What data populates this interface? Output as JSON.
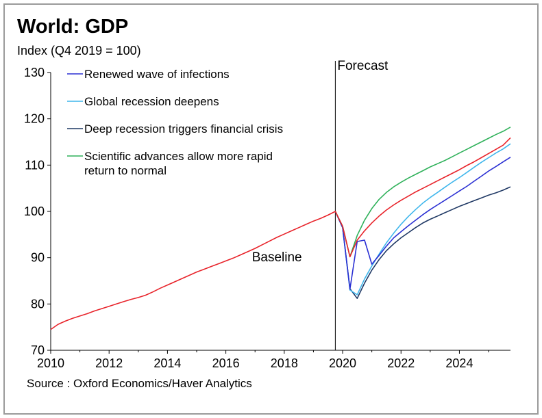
{
  "chart_data": {
    "type": "line",
    "title": "World: GDP",
    "ylabel": "Index (Q4 2019 = 100)",
    "xlabel": "",
    "xlim": [
      2010,
      2025.75
    ],
    "ylim": [
      70,
      130
    ],
    "x_ticks": [
      2010,
      2012,
      2014,
      2016,
      2018,
      2020,
      2022,
      2024
    ],
    "x_tick_labels": [
      "2010",
      "2012",
      "2014",
      "2016",
      "2018",
      "2020",
      "2022",
      "2024"
    ],
    "y_ticks": [
      70,
      80,
      90,
      100,
      110,
      120,
      130
    ],
    "y_tick_labels": [
      "70",
      "80",
      "90",
      "100",
      "110",
      "120",
      "130"
    ],
    "grid": false,
    "legend_position": "top-left of forecast area",
    "annotations": {
      "forecast_label": "Forecast",
      "forecast_x": 2019.75,
      "baseline_label": "Baseline"
    },
    "source": "Source : Oxford Economics/Haver Analytics",
    "series": [
      {
        "name": "Baseline",
        "color": "#e8232a",
        "points": [
          [
            2010.0,
            74.5
          ],
          [
            2010.25,
            75.6
          ],
          [
            2010.5,
            76.3
          ],
          [
            2010.75,
            76.9
          ],
          [
            2011.0,
            77.4
          ],
          [
            2011.25,
            77.9
          ],
          [
            2011.5,
            78.5
          ],
          [
            2011.75,
            79.0
          ],
          [
            2012.0,
            79.5
          ],
          [
            2012.25,
            80.0
          ],
          [
            2012.5,
            80.5
          ],
          [
            2012.75,
            81.0
          ],
          [
            2013.0,
            81.4
          ],
          [
            2013.25,
            81.9
          ],
          [
            2013.5,
            82.6
          ],
          [
            2013.75,
            83.4
          ],
          [
            2014.0,
            84.1
          ],
          [
            2014.25,
            84.8
          ],
          [
            2014.5,
            85.5
          ],
          [
            2014.75,
            86.2
          ],
          [
            2015.0,
            86.9
          ],
          [
            2015.25,
            87.5
          ],
          [
            2015.5,
            88.1
          ],
          [
            2015.75,
            88.7
          ],
          [
            2016.0,
            89.3
          ],
          [
            2016.25,
            89.9
          ],
          [
            2016.5,
            90.6
          ],
          [
            2016.75,
            91.3
          ],
          [
            2017.0,
            92.0
          ],
          [
            2017.25,
            92.8
          ],
          [
            2017.5,
            93.6
          ],
          [
            2017.75,
            94.4
          ],
          [
            2018.0,
            95.1
          ],
          [
            2018.25,
            95.8
          ],
          [
            2018.5,
            96.5
          ],
          [
            2018.75,
            97.2
          ],
          [
            2019.0,
            97.9
          ],
          [
            2019.25,
            98.5
          ],
          [
            2019.5,
            99.2
          ],
          [
            2019.75,
            100.0
          ],
          [
            2020.0,
            96.8
          ],
          [
            2020.25,
            90.2
          ],
          [
            2020.5,
            93.8
          ],
          [
            2020.75,
            95.8
          ],
          [
            2021.0,
            97.5
          ],
          [
            2021.25,
            99.0
          ],
          [
            2021.5,
            100.3
          ],
          [
            2021.75,
            101.4
          ],
          [
            2022.0,
            102.4
          ],
          [
            2022.25,
            103.3
          ],
          [
            2022.5,
            104.2
          ],
          [
            2022.75,
            105.0
          ],
          [
            2023.0,
            105.8
          ],
          [
            2023.25,
            106.6
          ],
          [
            2023.5,
            107.4
          ],
          [
            2023.75,
            108.2
          ],
          [
            2024.0,
            109.0
          ],
          [
            2024.25,
            109.9
          ],
          [
            2024.5,
            110.7
          ],
          [
            2024.75,
            111.6
          ],
          [
            2025.0,
            112.5
          ],
          [
            2025.25,
            113.4
          ],
          [
            2025.5,
            114.3
          ],
          [
            2025.75,
            115.9
          ]
        ]
      },
      {
        "name": "Renewed wave of infections",
        "color": "#2a2fd3",
        "points": [
          [
            2019.75,
            100.0
          ],
          [
            2020.0,
            96.5
          ],
          [
            2020.25,
            83.2
          ],
          [
            2020.5,
            93.5
          ],
          [
            2020.75,
            93.8
          ],
          [
            2021.0,
            88.6
          ],
          [
            2021.25,
            90.5
          ],
          [
            2021.5,
            92.5
          ],
          [
            2021.75,
            94.3
          ],
          [
            2022.0,
            95.6
          ],
          [
            2022.25,
            96.9
          ],
          [
            2022.5,
            98.1
          ],
          [
            2022.75,
            99.3
          ],
          [
            2023.0,
            100.4
          ],
          [
            2023.25,
            101.4
          ],
          [
            2023.5,
            102.4
          ],
          [
            2023.75,
            103.4
          ],
          [
            2024.0,
            104.4
          ],
          [
            2024.25,
            105.4
          ],
          [
            2024.5,
            106.5
          ],
          [
            2024.75,
            107.6
          ],
          [
            2025.0,
            108.7
          ],
          [
            2025.25,
            109.7
          ],
          [
            2025.5,
            110.7
          ],
          [
            2025.75,
            111.7
          ]
        ]
      },
      {
        "name": "Global recession deepens",
        "color": "#3fb6ec",
        "points": [
          [
            2019.75,
            100.0
          ],
          [
            2020.0,
            96.5
          ],
          [
            2020.25,
            83.0
          ],
          [
            2020.5,
            82.0
          ],
          [
            2020.75,
            85.4
          ],
          [
            2021.0,
            88.2
          ],
          [
            2021.25,
            90.8
          ],
          [
            2021.5,
            93.2
          ],
          [
            2021.75,
            95.3
          ],
          [
            2022.0,
            97.2
          ],
          [
            2022.25,
            98.9
          ],
          [
            2022.5,
            100.4
          ],
          [
            2022.75,
            101.8
          ],
          [
            2023.0,
            103.0
          ],
          [
            2023.25,
            104.1
          ],
          [
            2023.5,
            105.2
          ],
          [
            2023.75,
            106.3
          ],
          [
            2024.0,
            107.3
          ],
          [
            2024.25,
            108.4
          ],
          [
            2024.5,
            109.5
          ],
          [
            2024.75,
            110.6
          ],
          [
            2025.0,
            111.6
          ],
          [
            2025.25,
            112.6
          ],
          [
            2025.5,
            113.5
          ],
          [
            2025.75,
            114.6
          ]
        ]
      },
      {
        "name": "Deep recession triggers financial crisis",
        "color": "#1f3864",
        "points": [
          [
            2019.75,
            100.0
          ],
          [
            2020.0,
            96.5
          ],
          [
            2020.25,
            83.3
          ],
          [
            2020.5,
            81.2
          ],
          [
            2020.75,
            84.5
          ],
          [
            2021.0,
            87.3
          ],
          [
            2021.25,
            89.6
          ],
          [
            2021.5,
            91.5
          ],
          [
            2021.75,
            93.0
          ],
          [
            2022.0,
            94.3
          ],
          [
            2022.25,
            95.4
          ],
          [
            2022.5,
            96.5
          ],
          [
            2022.75,
            97.5
          ],
          [
            2023.0,
            98.3
          ],
          [
            2023.25,
            99.0
          ],
          [
            2023.5,
            99.7
          ],
          [
            2023.75,
            100.4
          ],
          [
            2024.0,
            101.1
          ],
          [
            2024.25,
            101.7
          ],
          [
            2024.5,
            102.3
          ],
          [
            2024.75,
            102.9
          ],
          [
            2025.0,
            103.5
          ],
          [
            2025.25,
            104.0
          ],
          [
            2025.5,
            104.6
          ],
          [
            2025.75,
            105.3
          ]
        ]
      },
      {
        "name": "Scientific advances allow more rapid return to normal",
        "color": "#2fb15a",
        "points": [
          [
            2019.75,
            100.0
          ],
          [
            2020.0,
            96.8
          ],
          [
            2020.25,
            90.2
          ],
          [
            2020.5,
            94.8
          ],
          [
            2020.75,
            98.1
          ],
          [
            2021.0,
            100.6
          ],
          [
            2021.25,
            102.6
          ],
          [
            2021.5,
            104.1
          ],
          [
            2021.75,
            105.3
          ],
          [
            2022.0,
            106.3
          ],
          [
            2022.25,
            107.2
          ],
          [
            2022.5,
            108.0
          ],
          [
            2022.75,
            108.8
          ],
          [
            2023.0,
            109.6
          ],
          [
            2023.25,
            110.3
          ],
          [
            2023.5,
            111.0
          ],
          [
            2023.75,
            111.8
          ],
          [
            2024.0,
            112.6
          ],
          [
            2024.25,
            113.4
          ],
          [
            2024.5,
            114.2
          ],
          [
            2024.75,
            115.0
          ],
          [
            2025.0,
            115.8
          ],
          [
            2025.25,
            116.6
          ],
          [
            2025.5,
            117.3
          ],
          [
            2025.75,
            118.2
          ]
        ]
      }
    ],
    "legend_order": [
      1,
      2,
      3,
      4
    ],
    "legend_lines": [
      [
        "Renewed wave of infections"
      ],
      [
        "Global recession deepens"
      ],
      [
        "Deep recession triggers financial crisis"
      ],
      [
        "Scientific advances allow more rapid",
        "return to normal"
      ]
    ]
  }
}
